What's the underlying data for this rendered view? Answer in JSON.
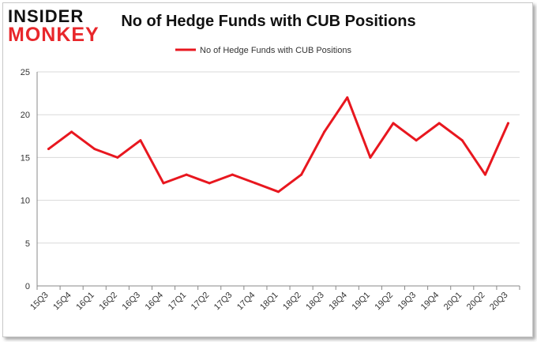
{
  "brand": {
    "line1": "INSIDER",
    "line2": "MONKEY"
  },
  "chart_data": {
    "type": "line",
    "title": "No of Hedge Funds with CUB Positions",
    "xlabel": "",
    "ylabel": "",
    "ylim": [
      0,
      25
    ],
    "yticks": [
      0,
      5,
      10,
      15,
      20,
      25
    ],
    "grid": true,
    "legend": "top-center",
    "categories": [
      "15Q3",
      "15Q4",
      "16Q1",
      "16Q2",
      "16Q3",
      "16Q4",
      "17Q1",
      "17Q2",
      "17Q3",
      "17Q4",
      "18Q1",
      "18Q2",
      "18Q3",
      "18Q4",
      "19Q1",
      "19Q2",
      "19Q3",
      "19Q4",
      "20Q1",
      "20Q2",
      "20Q3"
    ],
    "series": [
      {
        "name": "No of Hedge Funds with CUB Positions",
        "color": "#e8171f",
        "values": [
          16,
          18,
          16,
          15,
          17,
          12,
          13,
          12,
          13,
          12,
          11,
          13,
          18,
          22,
          15,
          19,
          17,
          19,
          17,
          13,
          19
        ]
      }
    ]
  }
}
